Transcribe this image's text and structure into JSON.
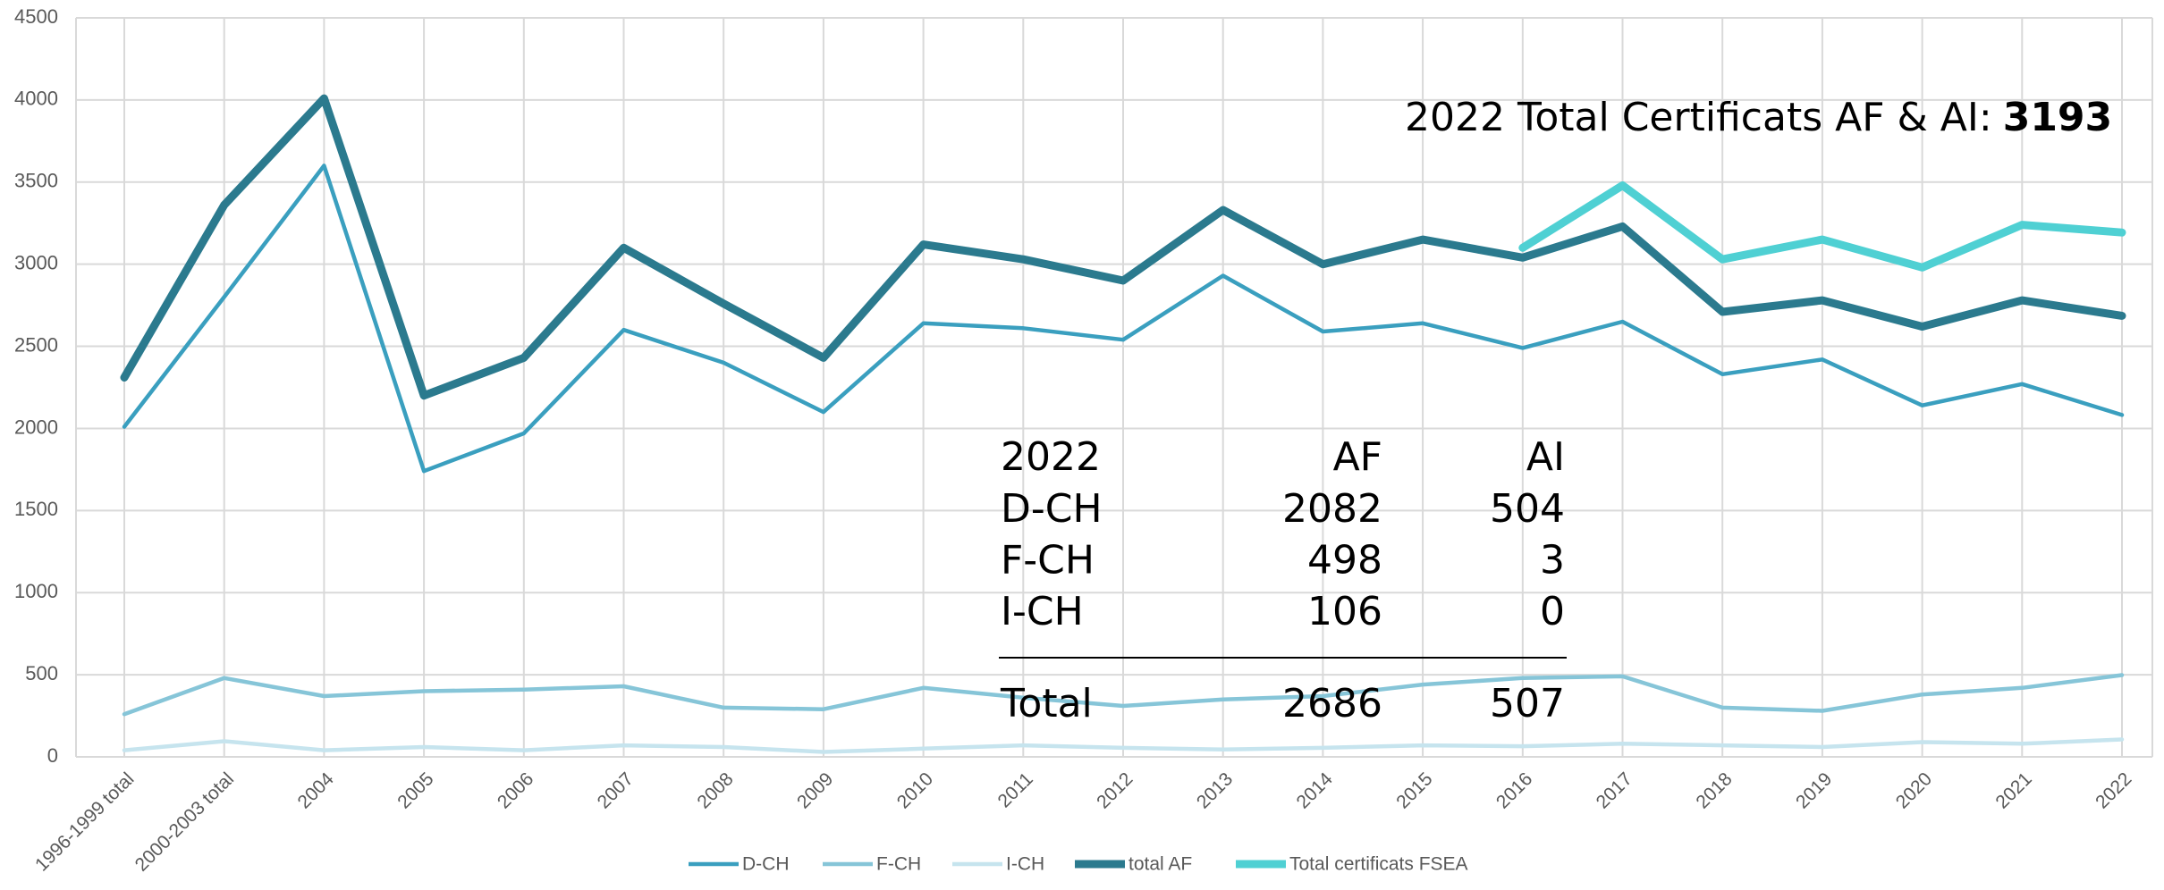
{
  "chart_data": {
    "type": "line",
    "categories": [
      "1996-1999 total",
      "2000-2003 total",
      "2004",
      "2005",
      "2006",
      "2007",
      "2008",
      "2009",
      "2010",
      "2011",
      "2012",
      "2013",
      "2014",
      "2015",
      "2016",
      "2017",
      "2018",
      "2019",
      "2020",
      "2021",
      "2022"
    ],
    "series": [
      {
        "name": "D-CH",
        "color": "#3a9fbf",
        "width": 4.5,
        "values": [
          2010,
          2800,
          3600,
          1740,
          1970,
          2600,
          2400,
          2100,
          2640,
          2610,
          2540,
          2930,
          2590,
          2640,
          2490,
          2650,
          2330,
          2420,
          2140,
          2270,
          2082
        ]
      },
      {
        "name": "F-CH",
        "color": "#86c5d8",
        "width": 4.5,
        "values": [
          260,
          480,
          370,
          400,
          410,
          430,
          300,
          290,
          420,
          360,
          310,
          350,
          370,
          440,
          480,
          490,
          300,
          280,
          380,
          420,
          498
        ]
      },
      {
        "name": "I-CH",
        "color": "#c6e4ee",
        "width": 4.5,
        "values": [
          40,
          95,
          40,
          60,
          40,
          70,
          60,
          30,
          50,
          70,
          55,
          45,
          55,
          70,
          65,
          80,
          70,
          60,
          90,
          80,
          106
        ]
      },
      {
        "name": "total AF",
        "color": "#2b7a8e",
        "width": 9,
        "values": [
          2310,
          3360,
          4010,
          2200,
          2430,
          3100,
          2760,
          2430,
          3120,
          3030,
          2900,
          3330,
          3000,
          3150,
          3040,
          3230,
          2710,
          2780,
          2620,
          2780,
          2686
        ]
      },
      {
        "name": "Total certificats FSEA",
        "color": "#4fd0d3",
        "width": 9,
        "values": [
          null,
          null,
          null,
          null,
          null,
          null,
          null,
          null,
          null,
          null,
          null,
          null,
          null,
          null,
          3100,
          3480,
          3030,
          3150,
          2980,
          3240,
          3193
        ]
      }
    ],
    "ylim": [
      0,
      4500
    ],
    "yticks": [
      0,
      500,
      1000,
      1500,
      2000,
      2500,
      3000,
      3500,
      4000,
      4500
    ],
    "grid": true,
    "annotation": {
      "text": "2022 Total Certificats AF & AI:",
      "value": 3193
    },
    "table": {
      "header": [
        "2022",
        "AF",
        "AI"
      ],
      "rows": [
        [
          "D-CH",
          2082,
          504
        ],
        [
          "F-CH",
          498,
          3
        ],
        [
          "I-CH",
          106,
          0
        ]
      ],
      "total": [
        "Total",
        2686,
        507
      ]
    }
  }
}
